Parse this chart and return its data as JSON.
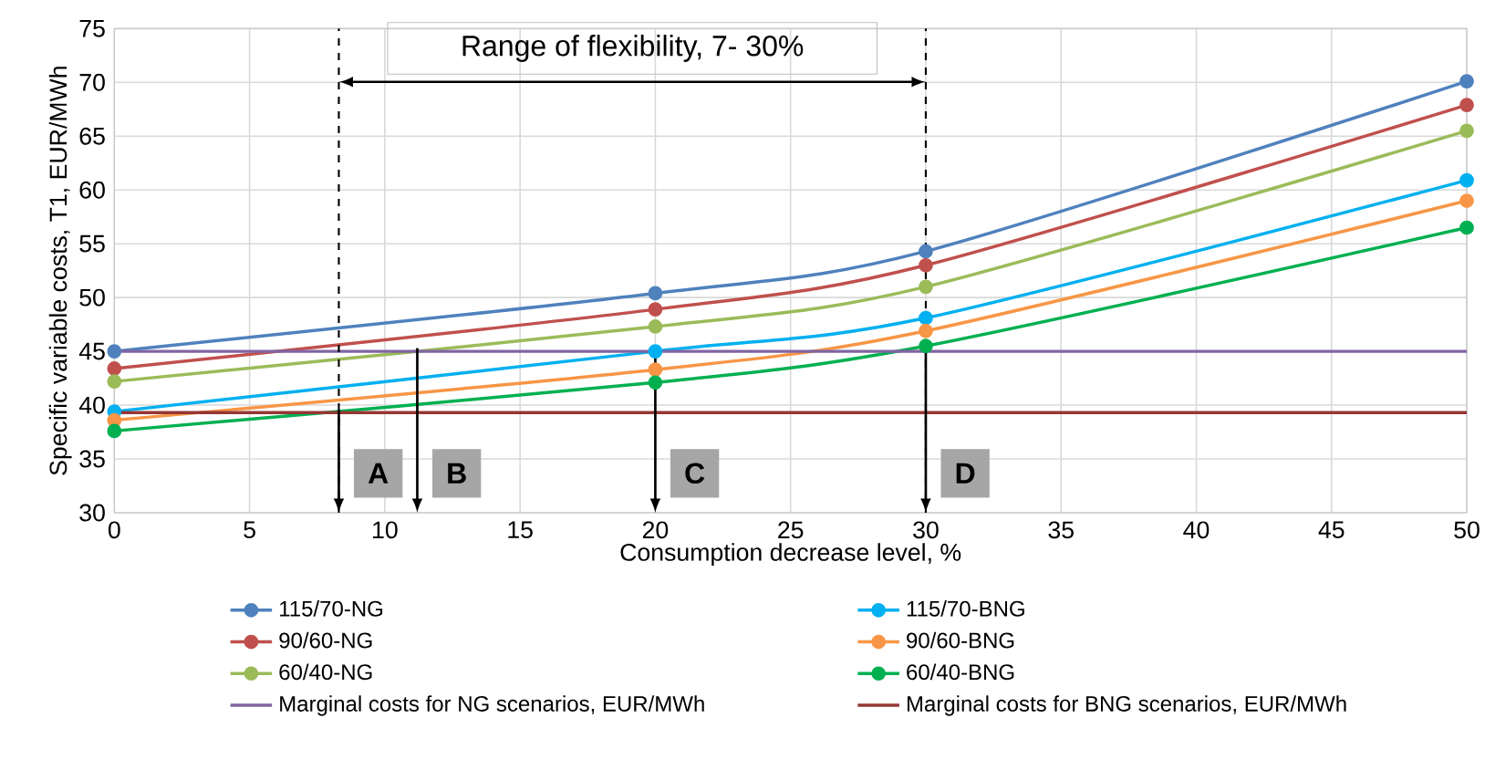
{
  "chart_data": {
    "type": "line",
    "xlabel": "Consumption decrease level, %",
    "ylabel": "Specific variable costs, T1, EUR/MWh",
    "x": [
      0,
      20,
      30,
      50
    ],
    "series": [
      {
        "name": "115/70-NG",
        "color": "#4f81bd",
        "values": [
          45,
          50.4,
          54.3,
          70.1
        ]
      },
      {
        "name": "115/70-BNG",
        "color": "#00b0f0",
        "values": [
          39.4,
          45,
          48.1,
          60.9
        ]
      },
      {
        "name": "90/60-NG",
        "color": "#c0504d",
        "values": [
          43.4,
          48.9,
          53,
          67.9
        ]
      },
      {
        "name": "90/60-BNG",
        "color": "#f79646",
        "values": [
          38.6,
          43.3,
          46.9,
          59
        ]
      },
      {
        "name": "60/40-NG",
        "color": "#9bbb59",
        "values": [
          42.2,
          47.3,
          51,
          65.5
        ]
      },
      {
        "name": "60/40-BNG",
        "color": "#00b050",
        "values": [
          37.6,
          42.1,
          45.5,
          56.5
        ]
      },
      {
        "name": "Marginal costs for NG scenarios, EUR/MWh",
        "color": "#8064a2",
        "marker": "none",
        "values": [
          45,
          45,
          45,
          45
        ]
      },
      {
        "name": "Marginal costs for BNG scenarios, EUR/MWh",
        "color": "#953735",
        "marker": "none",
        "values": [
          39.3,
          39.3,
          39.3,
          39.3
        ]
      }
    ],
    "xlim": [
      0,
      50
    ],
    "ylim": [
      30,
      75
    ],
    "xticks": [
      0,
      5,
      10,
      15,
      20,
      25,
      30,
      35,
      40,
      45,
      50
    ],
    "yticks": [
      30,
      35,
      40,
      45,
      50,
      55,
      60,
      65,
      70,
      75
    ],
    "grid": true,
    "legend": "bottom",
    "marker": "circle",
    "line_style": "solid",
    "ref_lines": [
      {
        "axis": "x",
        "value": 8.3,
        "color": "#000000",
        "line_style": "dashed"
      },
      {
        "axis": "x",
        "value": 30,
        "color": "#000000",
        "line_style": "dashed"
      }
    ],
    "annotations": [
      "Range of flexibility, 7- 30%",
      {
        "text": "A",
        "x": 8.3,
        "y": 39.5
      },
      {
        "text": "B",
        "x": 11.2,
        "y": 45.3
      },
      {
        "text": "C",
        "x": 20,
        "y": 45
      },
      {
        "text": "D",
        "x": 30,
        "y": 45.5
      }
    ]
  }
}
